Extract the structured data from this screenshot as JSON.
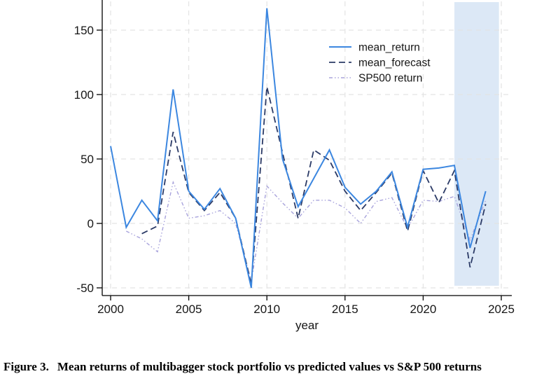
{
  "figure": {
    "caption_label": "Figure 3.",
    "caption_text": "Mean returns of multibagger stock portfolio vs predicted values vs S&P 500 returns"
  },
  "chart_data": {
    "type": "line",
    "title": "",
    "xlabel": "year",
    "ylabel": "",
    "x_range": [
      2000,
      2025
    ],
    "y_range": [
      -50,
      150
    ],
    "x_ticks": [
      2000,
      2005,
      2010,
      2015,
      2020,
      2025
    ],
    "y_ticks": [
      -50,
      0,
      50,
      100,
      150
    ],
    "grid": "both-dashed",
    "colors": {
      "mean_return": "#3c87e0",
      "mean_forecast": "#2b3a66",
      "sp500": "#a8a3dc",
      "gridline": "#e3e3e3",
      "axis": "#000000",
      "highlight_band": "#dce8f6"
    },
    "highlight_band": {
      "x_start": 2022,
      "x_end": 2024.85
    },
    "legend": {
      "position": "top-right-inside"
    },
    "series": [
      {
        "name": "mean_return",
        "style": "solid",
        "color": "#3c87e0",
        "x": [
          2000,
          2001,
          2002,
          2003,
          2004,
          2005,
          2006,
          2007,
          2008,
          2009,
          2010,
          2011,
          2012,
          2013,
          2014,
          2015,
          2016,
          2017,
          2018,
          2019,
          2020,
          2021,
          2022,
          2023,
          2024
        ],
        "values": [
          60,
          -3,
          18,
          2,
          104,
          25,
          11,
          27,
          4,
          -50,
          167,
          50,
          13,
          35,
          57,
          28,
          15,
          25,
          40,
          -3,
          42,
          43,
          45,
          -19,
          25
        ]
      },
      {
        "name": "mean_forecast",
        "style": "dashed",
        "color": "#2b3a66",
        "x": [
          2002,
          2003,
          2004,
          2005,
          2006,
          2007,
          2008,
          2009,
          2010,
          2011,
          2012,
          2013,
          2014,
          2015,
          2016,
          2017,
          2018,
          2019,
          2020,
          2021,
          2022,
          2023,
          2024
        ],
        "values": [
          -8,
          -2,
          71,
          24,
          10,
          24,
          4,
          -47,
          106,
          55,
          4,
          57,
          49,
          25,
          10,
          24,
          39,
          -6,
          41,
          16,
          41,
          -34,
          15
        ]
      },
      {
        "name": "SP500 return",
        "style": "dashdot",
        "color": "#a8a3dc",
        "x": [
          2001,
          2002,
          2003,
          2004,
          2005,
          2006,
          2007,
          2008,
          2009,
          2010,
          2011,
          2012,
          2013,
          2014,
          2015,
          2016,
          2017,
          2018,
          2019,
          2020,
          2021,
          2022,
          2023,
          2024
        ],
        "values": [
          -6,
          -12,
          -22,
          32,
          4,
          6,
          10,
          0,
          -45,
          29,
          16,
          4,
          18,
          18,
          12,
          0,
          17,
          20,
          -4,
          18,
          17,
          21,
          -13,
          18
        ]
      }
    ]
  }
}
